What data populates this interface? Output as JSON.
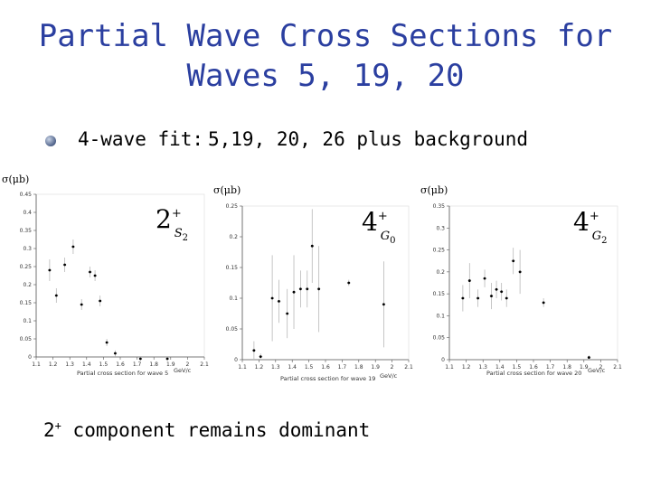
{
  "slide": {
    "title_line1": "Partial Wave Cross Sections for",
    "title_line2": "Waves 5, 19, 20",
    "bullet_label": "4-wave fit:",
    "bullet_text": "5,19, 20, 26 plus background",
    "conclusion_sup": "+",
    "conclusion_text": "component remains dominant",
    "conclusion_lead": "2",
    "title_color": "#2b3fa0"
  },
  "chart_data": [
    {
      "type": "scatter",
      "ylabel": "σ(μb)",
      "xlabel": "GeV/c",
      "caption": "Partial cross section for wave 5",
      "state": {
        "main": "2",
        "sup": "+",
        "sub": "S",
        "subsub": "2"
      },
      "xlim": [
        1.1,
        2.1
      ],
      "ylim": [
        0,
        0.45
      ],
      "xticks": [
        "1.1",
        "1.2",
        "1.3",
        "1.4",
        "1.5",
        "1.6",
        "1.7",
        "1.8",
        "1.9",
        "2",
        "2.1"
      ],
      "yticks": [
        "0",
        "0.05",
        "0.1",
        "0.15",
        "0.2",
        "0.25",
        "0.3",
        "0.35",
        "0.4",
        "0.45"
      ],
      "points": [
        {
          "x": 1.18,
          "y": 0.24,
          "err": 0.03
        },
        {
          "x": 1.22,
          "y": 0.17,
          "err": 0.02
        },
        {
          "x": 1.27,
          "y": 0.255,
          "err": 0.02
        },
        {
          "x": 1.32,
          "y": 0.305,
          "err": 0.02
        },
        {
          "x": 1.37,
          "y": 0.145,
          "err": 0.015
        },
        {
          "x": 1.42,
          "y": 0.235,
          "err": 0.015
        },
        {
          "x": 1.45,
          "y": 0.225,
          "err": 0.015
        },
        {
          "x": 1.48,
          "y": 0.155,
          "err": 0.015
        },
        {
          "x": 1.52,
          "y": 0.04,
          "err": 0.01
        },
        {
          "x": 1.57,
          "y": 0.01,
          "err": 0.008
        },
        {
          "x": 1.72,
          "y": -0.005,
          "err": 0.005
        },
        {
          "x": 1.88,
          "y": -0.005,
          "err": 0.005
        }
      ]
    },
    {
      "type": "scatter",
      "ylabel": "σ(μb)",
      "xlabel": "GeV/c",
      "caption": "Partial cross section for wave 19",
      "state": {
        "main": "4",
        "sup": "+",
        "sub": "G",
        "subsub": "0"
      },
      "xlim": [
        1.1,
        2.1
      ],
      "ylim": [
        0,
        0.25
      ],
      "xticks": [
        "1.1",
        "1.2",
        "1.3",
        "1.4",
        "1.5",
        "1.6",
        "1.7",
        "1.8",
        "1.9",
        "2",
        "2.1"
      ],
      "yticks": [
        "0",
        "0.05",
        "0.1",
        "0.15",
        "0.2",
        "0.25"
      ],
      "points": [
        {
          "x": 1.17,
          "y": 0.015,
          "err": 0.015
        },
        {
          "x": 1.21,
          "y": 0.005,
          "err": 0.005
        },
        {
          "x": 1.28,
          "y": 0.1,
          "err": 0.07
        },
        {
          "x": 1.32,
          "y": 0.095,
          "err": 0.035
        },
        {
          "x": 1.37,
          "y": 0.075,
          "err": 0.04
        },
        {
          "x": 1.41,
          "y": 0.11,
          "err": 0.06
        },
        {
          "x": 1.45,
          "y": 0.115,
          "err": 0.03
        },
        {
          "x": 1.49,
          "y": 0.115,
          "err": 0.03
        },
        {
          "x": 1.52,
          "y": 0.185,
          "err": 0.06
        },
        {
          "x": 1.56,
          "y": 0.115,
          "err": 0.07
        },
        {
          "x": 1.74,
          "y": 0.125,
          "err": 0.005
        },
        {
          "x": 1.95,
          "y": 0.09,
          "err": 0.07
        }
      ]
    },
    {
      "type": "scatter",
      "ylabel": "σ(μb)",
      "xlabel": "GeV/c",
      "caption": "Partial cross section for wave 20",
      "state": {
        "main": "4",
        "sup": "+",
        "sub": "G",
        "subsub": "2"
      },
      "xlim": [
        1.1,
        2.1
      ],
      "ylim": [
        0,
        0.35
      ],
      "xticks": [
        "1.1",
        "1.2",
        "1.3",
        "1.4",
        "1.5",
        "1.6",
        "1.7",
        "1.8",
        "1.9",
        "2",
        "2.1"
      ],
      "yticks": [
        "0",
        "0.05",
        "0.1",
        "0.15",
        "0.2",
        "0.25",
        "0.3",
        "0.35"
      ],
      "points": [
        {
          "x": 1.18,
          "y": 0.14,
          "err": 0.03
        },
        {
          "x": 1.22,
          "y": 0.18,
          "err": 0.04
        },
        {
          "x": 1.27,
          "y": 0.14,
          "err": 0.02
        },
        {
          "x": 1.31,
          "y": 0.185,
          "err": 0.02
        },
        {
          "x": 1.35,
          "y": 0.145,
          "err": 0.03
        },
        {
          "x": 1.38,
          "y": 0.16,
          "err": 0.02
        },
        {
          "x": 1.41,
          "y": 0.155,
          "err": 0.02
        },
        {
          "x": 1.44,
          "y": 0.14,
          "err": 0.02
        },
        {
          "x": 1.48,
          "y": 0.225,
          "err": 0.03
        },
        {
          "x": 1.52,
          "y": 0.2,
          "err": 0.05
        },
        {
          "x": 1.66,
          "y": 0.13,
          "err": 0.01
        },
        {
          "x": 1.93,
          "y": 0.005,
          "err": 0.005
        }
      ]
    }
  ]
}
